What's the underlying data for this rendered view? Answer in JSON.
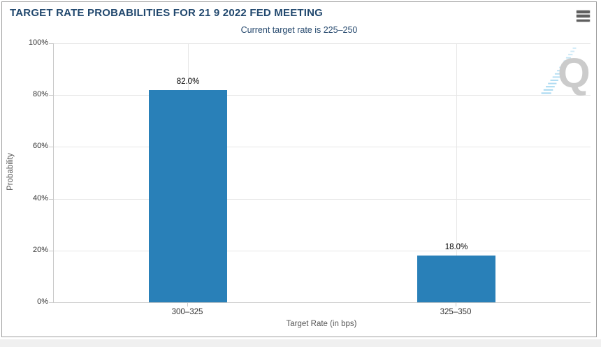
{
  "page": {
    "title": "TARGET RATE PROBABILITIES FOR 21 9 2022 FED MEETING",
    "subtitle": "Current target rate is 225–250",
    "watermark_letter": "Q"
  },
  "toolbar": {
    "menu_icon": "hamburger-menu-icon"
  },
  "colors": {
    "bar": "#2980b8",
    "title_text": "#21486e",
    "watermark_gray": "#cbcbcb",
    "watermark_blue": "#9fd4ef",
    "gridline": "#e6e6e6"
  },
  "chart_data": {
    "type": "bar",
    "title": "TARGET RATE PROBABILITIES FOR 21 9 2022 FED MEETING",
    "subtitle": "Current target rate is 225–250",
    "categories": [
      "300–325",
      "325–350"
    ],
    "values": [
      82.0,
      18.0
    ],
    "data_labels": [
      "82.0%",
      "18.0%"
    ],
    "xlabel": "Target Rate (in bps)",
    "ylabel": "Probability",
    "ylim": [
      0,
      100
    ],
    "yticks": [
      "0%",
      "20%",
      "40%",
      "60%",
      "80%",
      "100%"
    ],
    "grid": true,
    "legend": "none",
    "bar_color": "#2980b8"
  }
}
